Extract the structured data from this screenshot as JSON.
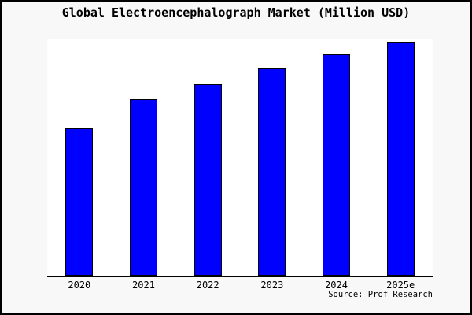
{
  "frame": {
    "background": "#f8f8f8",
    "border_color": "#000000",
    "plot_background": "#ffffff",
    "axis_color": "#000000"
  },
  "chart_data": {
    "type": "bar",
    "title": "Global Electroencephalograph Market (Million USD)",
    "categories": [
      "2020",
      "2021",
      "2022",
      "2023",
      "2024",
      "2025e"
    ],
    "values": [
      62.3,
      74.7,
      81.0,
      88.0,
      93.7,
      99.0
    ],
    "value_scale_note": "y-axis unlabeled; values estimated as percent of plot height",
    "xlabel": "",
    "ylabel": "",
    "ylim": [
      0,
      100
    ],
    "grid": false,
    "legend": false,
    "bar_color": "#0000ff",
    "bar_border_color": "#000000",
    "source": "Source: Prof Research"
  }
}
